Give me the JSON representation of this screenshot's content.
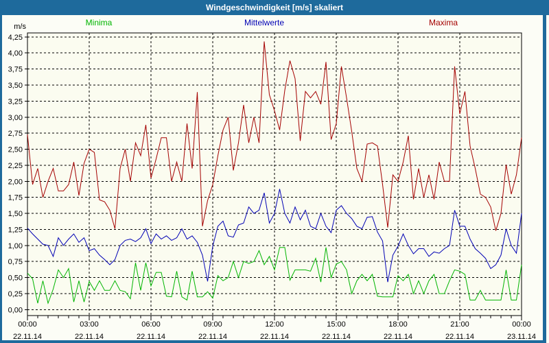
{
  "window": {
    "title": "Windgeschwindigkeit [m/s] skaliert"
  },
  "colors": {
    "titlebar_bg": "#1e6a9c",
    "frame": "#1e6a9c",
    "panel_bg": "#fcfdf6",
    "plot_bg": "#fbfcf0",
    "grid": "#000000",
    "minima_green": "#00b400",
    "mittelwerte_blue": "#0000b4",
    "maxima_red": "#a40000"
  },
  "chart_data": {
    "type": "line",
    "title": "Windgeschwindigkeit [m/s] skaliert",
    "xlabel": "",
    "ylabel": "m/s",
    "ylim": [
      0,
      4.25
    ],
    "ytick_step": 0.25,
    "ytick_labels": [
      "0,00",
      "0,25",
      "0,50",
      "0,75",
      "1,00",
      "1,25",
      "1,50",
      "1,75",
      "2,00",
      "2,25",
      "2,50",
      "2,75",
      "3,00",
      "3,25",
      "3,50",
      "3,75",
      "4,00",
      "4,25"
    ],
    "grid": "dashed",
    "legend_position": "top",
    "sample_interval_minutes": 15,
    "x_minor_tick_minutes": 30,
    "x_major_tick_hours": 3,
    "xticks": [
      {
        "time": "00:00",
        "date": "22.11.14"
      },
      {
        "time": "03:00",
        "date": "22.11.14"
      },
      {
        "time": "06:00",
        "date": "22.11.14"
      },
      {
        "time": "09:00",
        "date": "22.11.14"
      },
      {
        "time": "12:00",
        "date": "22.11.14"
      },
      {
        "time": "15:00",
        "date": "22.11.14"
      },
      {
        "time": "18:00",
        "date": "22.11.14"
      },
      {
        "time": "21:00",
        "date": "22.11.14"
      },
      {
        "time": "00:00",
        "date": "23.11.14"
      }
    ],
    "series": [
      {
        "name": "Minima",
        "color": "#00b400",
        "values": [
          0.57,
          0.48,
          0.1,
          0.45,
          0.1,
          0.32,
          0.62,
          0.5,
          0.64,
          0.12,
          0.45,
          0.12,
          0.44,
          0.3,
          0.45,
          0.3,
          0.3,
          0.45,
          0.3,
          0.28,
          0.17,
          0.73,
          0.3,
          0.73,
          0.37,
          0.58,
          0.58,
          0.21,
          0.2,
          0.6,
          0.2,
          0.15,
          0.6,
          0.2,
          0.2,
          0.28,
          0.18,
          0.53,
          0.45,
          0.5,
          0.75,
          0.5,
          0.75,
          0.72,
          0.75,
          0.92,
          0.7,
          0.83,
          0.62,
          0.97,
          0.97,
          0.46,
          0.62,
          0.62,
          0.62,
          0.6,
          0.8,
          0.43,
          0.97,
          0.5,
          0.71,
          0.75,
          0.62,
          0.25,
          0.45,
          0.55,
          0.45,
          0.55,
          0.21,
          0.2,
          0.2,
          0.2,
          0.53,
          0.45,
          0.55,
          0.25,
          0.45,
          0.25,
          0.45,
          0.55,
          0.25,
          0.25,
          0.45,
          0.62,
          0.6,
          0.55,
          0.15,
          0.15,
          0.3,
          0.15,
          0.15,
          0.15,
          0.15,
          0.62,
          0.15,
          0.15,
          0.7
        ]
      },
      {
        "name": "Mittelwerte",
        "color": "#0000b4",
        "values": [
          1.27,
          1.18,
          1.1,
          1.02,
          1.0,
          0.83,
          1.12,
          1.0,
          1.1,
          1.18,
          1.05,
          1.12,
          0.92,
          0.95,
          0.85,
          0.78,
          0.7,
          0.78,
          1.0,
          1.08,
          1.1,
          1.06,
          1.12,
          1.26,
          1.03,
          1.18,
          1.1,
          1.15,
          1.08,
          1.12,
          1.26,
          1.1,
          1.15,
          1.05,
          0.85,
          0.44,
          0.99,
          1.3,
          1.38,
          1.15,
          1.13,
          1.32,
          1.35,
          1.6,
          1.5,
          1.55,
          1.82,
          1.35,
          1.5,
          1.88,
          1.5,
          1.35,
          1.6,
          1.4,
          1.55,
          1.3,
          1.26,
          1.5,
          1.3,
          1.2,
          1.55,
          1.62,
          1.5,
          1.42,
          1.3,
          1.26,
          1.44,
          1.45,
          1.21,
          1.07,
          0.43,
          0.85,
          0.99,
          1.18,
          1.0,
          0.87,
          0.95,
          0.95,
          0.83,
          0.9,
          0.88,
          0.95,
          1.0,
          1.55,
          1.3,
          1.3,
          1.1,
          0.95,
          0.88,
          0.8,
          0.64,
          0.7,
          0.85,
          1.26,
          1.0,
          0.88,
          1.5
        ]
      },
      {
        "name": "Maxima",
        "color": "#a40000",
        "values": [
          2.73,
          1.95,
          2.2,
          1.75,
          2.0,
          2.2,
          1.85,
          1.85,
          1.95,
          2.3,
          1.78,
          2.28,
          2.5,
          2.45,
          1.71,
          1.68,
          1.55,
          1.26,
          2.2,
          2.5,
          2.0,
          2.6,
          2.4,
          2.88,
          2.05,
          2.35,
          2.68,
          2.68,
          2.0,
          2.3,
          2.0,
          2.9,
          2.2,
          3.39,
          1.3,
          1.7,
          1.95,
          2.4,
          2.8,
          3.0,
          2.17,
          2.6,
          3.19,
          2.6,
          3.0,
          2.6,
          4.18,
          3.35,
          3.1,
          2.8,
          3.42,
          3.88,
          3.6,
          2.63,
          3.4,
          3.3,
          3.4,
          3.2,
          3.86,
          2.65,
          2.9,
          3.79,
          3.3,
          2.78,
          2.2,
          2.0,
          2.58,
          2.6,
          2.55,
          1.95,
          1.28,
          2.1,
          2.0,
          2.3,
          2.71,
          1.72,
          2.2,
          1.75,
          2.1,
          1.72,
          2.3,
          2.0,
          2.0,
          3.79,
          3.05,
          3.4,
          2.55,
          2.2,
          1.8,
          1.75,
          1.6,
          1.23,
          1.5,
          2.26,
          1.8,
          2.1,
          2.68
        ]
      }
    ]
  }
}
